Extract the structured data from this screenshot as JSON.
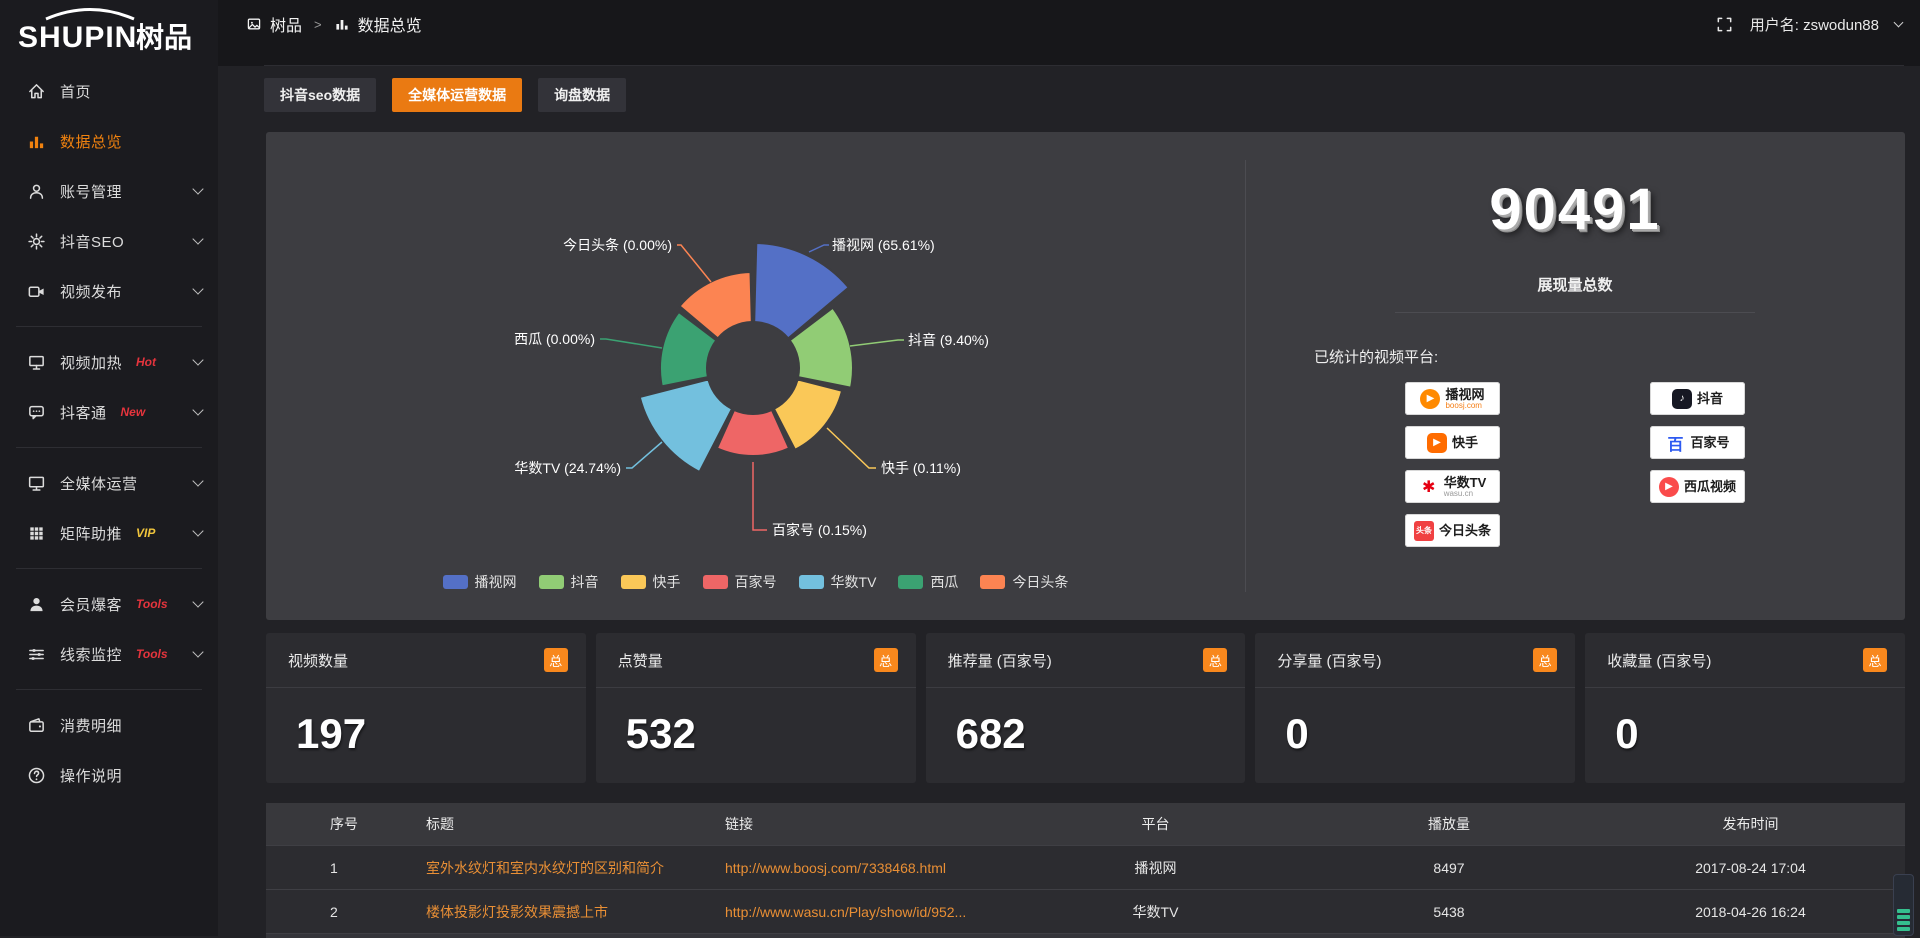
{
  "brand": {
    "name": "SHUPIN",
    "cn": "树品"
  },
  "topbar": {
    "breadcrumb_app": "树品",
    "breadcrumb_sep": ">",
    "breadcrumb_page": "数据总览",
    "user_label": "用户名: zswodun88"
  },
  "sidebar": {
    "items": [
      {
        "key": "home",
        "icon": "home-icon",
        "label": "首页"
      },
      {
        "key": "data-overview",
        "icon": "bar-chart-icon",
        "label": "数据总览",
        "active": true
      },
      {
        "key": "account-management",
        "icon": "user-icon",
        "label": "账号管理",
        "chevron": true
      },
      {
        "key": "douyin-seo",
        "icon": "gear-icon",
        "label": "抖音SEO",
        "chevron": true
      },
      {
        "key": "video-publish",
        "icon": "video-icon",
        "label": "视频发布",
        "chevron": true,
        "divider_after": true
      },
      {
        "key": "video-heating",
        "icon": "screen-icon",
        "label": "视频加热",
        "tag": "Hot",
        "tag_color": "#e5343d",
        "chevron": true
      },
      {
        "key": "doukertong",
        "icon": "chat-icon",
        "label": "抖客通",
        "tag": "New",
        "tag_color": "#e5343d",
        "chevron": true,
        "divider_after": true
      },
      {
        "key": "omnimedia-operation",
        "icon": "monitor-icon",
        "label": "全媒体运营",
        "chevron": true
      },
      {
        "key": "matrix-boost",
        "icon": "grid-icon",
        "label": "矩阵助推",
        "tag": "VIP",
        "tag_color": "#f0c53c",
        "chevron": true,
        "divider_after": true
      },
      {
        "key": "member-baoke",
        "icon": "person-icon",
        "label": "会员爆客",
        "tag": "Tools",
        "tag_color": "#e5343d",
        "chevron": true
      },
      {
        "key": "lead-monitor",
        "icon": "sliders-icon",
        "label": "线索监控",
        "tag": "Tools",
        "tag_color": "#e5343d",
        "chevron": true,
        "divider_after": true
      },
      {
        "key": "consumption-detail",
        "icon": "wallet-icon",
        "label": "消费明细"
      },
      {
        "key": "operation-guide",
        "icon": "question-icon",
        "label": "操作说明"
      }
    ]
  },
  "tabs": [
    {
      "key": "douyin-seo-data",
      "label": "抖音seo数据",
      "active": false
    },
    {
      "key": "omnimedia-data",
      "label": "全媒体运营数据",
      "active": true
    },
    {
      "key": "inquiry-data",
      "label": "询盘数据",
      "active": false
    }
  ],
  "chart_data": {
    "type": "pie",
    "variant": "nightingale-rose",
    "legend_position": "bottom",
    "items": [
      {
        "key": "boosj",
        "name": "播视网",
        "pct": 65.61,
        "color": "#5470c6"
      },
      {
        "key": "douyin",
        "name": "抖音",
        "pct": 9.4,
        "color": "#91cc75"
      },
      {
        "key": "kuaishou",
        "name": "快手",
        "pct": 0.11,
        "color": "#fac858"
      },
      {
        "key": "baijiahao",
        "name": "百家号",
        "pct": 0.15,
        "color": "#ee6666"
      },
      {
        "key": "wasu",
        "name": "华数TV",
        "pct": 24.74,
        "color": "#73c0de"
      },
      {
        "key": "xigua",
        "name": "西瓜",
        "pct": 0.0,
        "color": "#3ba272"
      },
      {
        "key": "toutiao",
        "name": "今日头条",
        "pct": 0.0,
        "color": "#fc8452"
      }
    ],
    "total_value": "90491",
    "total_label": "展现量总数"
  },
  "platforms_panel": {
    "heading": "已统计的视频平台:",
    "left": [
      {
        "key": "boosj",
        "icon": "boosj-logo",
        "name": "播视网",
        "sub": "boosj.com"
      },
      {
        "key": "kuaishou",
        "icon": "kuaishou-logo",
        "name": "快手"
      },
      {
        "key": "wasu",
        "icon": "wasu-logo",
        "name": "华数TV",
        "sub": "wasu.cn"
      },
      {
        "key": "toutiao",
        "icon": "toutiao-logo",
        "name": "今日头条"
      }
    ],
    "right": [
      {
        "key": "douyin",
        "icon": "douyin-logo",
        "name": "抖音"
      },
      {
        "key": "baijiahao",
        "icon": "baijiahao-logo",
        "name": "百家号"
      },
      {
        "key": "xigua",
        "icon": "xigua-logo",
        "name": "西瓜视频"
      }
    ]
  },
  "stat_cards": [
    {
      "label": "视频数量",
      "badge": "总",
      "value": "197"
    },
    {
      "label": "点赞量",
      "badge": "总",
      "value": "532"
    },
    {
      "label": "推荐量 (百家号)",
      "badge": "总",
      "value": "682"
    },
    {
      "label": "分享量 (百家号)",
      "badge": "总",
      "value": "0"
    },
    {
      "label": "收藏量 (百家号)",
      "badge": "总",
      "value": "0"
    }
  ],
  "table": {
    "headers": [
      "序号",
      "标题",
      "链接",
      "平台",
      "播放量",
      "发布时间"
    ],
    "rows": [
      {
        "no": "1",
        "title": "室外水纹灯和室内水纹灯的区别和简介",
        "link": "http://www.boosj.com/7338468.html",
        "platform": "播视网",
        "plays": "8497",
        "time": "2017-08-24 17:04"
      },
      {
        "no": "2",
        "title": "楼体投影灯投影效果震撼上市",
        "link": "http://www.wasu.cn/Play/show/id/952...",
        "platform": "华数TV",
        "plays": "5438",
        "time": "2018-04-26 16:24"
      }
    ]
  }
}
